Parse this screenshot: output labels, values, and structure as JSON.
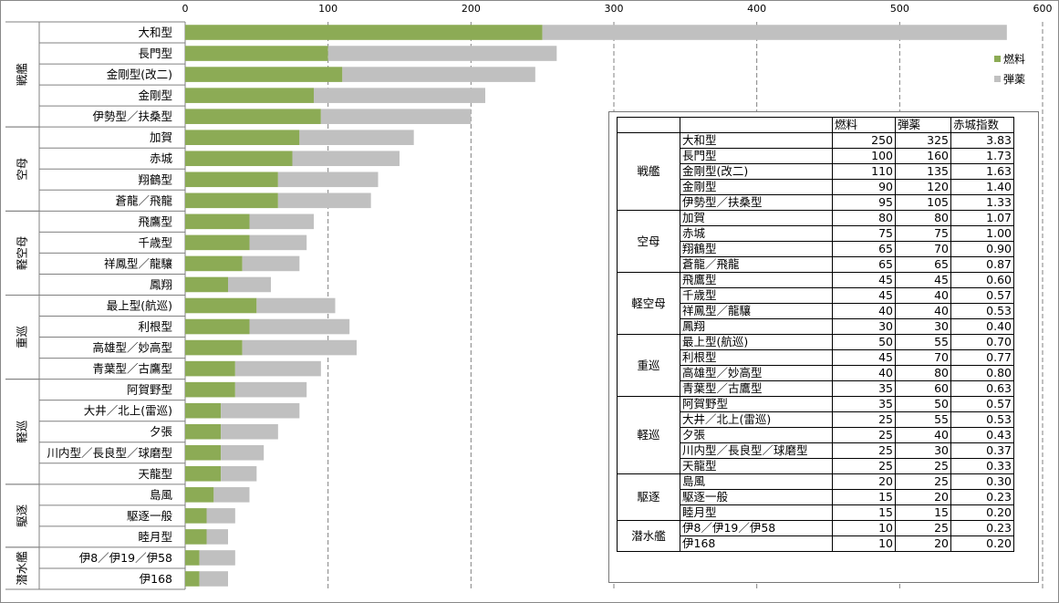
{
  "chart_data": {
    "type": "bar",
    "orientation": "horizontal",
    "stacked": true,
    "xlim": [
      0,
      600
    ],
    "x_ticks": [
      0,
      100,
      200,
      300,
      400,
      500,
      600
    ],
    "series": [
      {
        "name": "燃料",
        "color": "#8cab55",
        "values": [
          250,
          100,
          110,
          90,
          95,
          80,
          75,
          65,
          65,
          45,
          45,
          40,
          30,
          50,
          45,
          40,
          35,
          35,
          25,
          25,
          25,
          25,
          20,
          15,
          15,
          10,
          10
        ]
      },
      {
        "name": "弾薬",
        "color": "#c0c0c0",
        "values": [
          325,
          160,
          135,
          120,
          105,
          80,
          75,
          70,
          65,
          45,
          40,
          40,
          30,
          55,
          70,
          80,
          60,
          50,
          55,
          40,
          30,
          25,
          25,
          20,
          15,
          25,
          20
        ]
      }
    ],
    "categories": [
      "大和型",
      "長門型",
      "金剛型(改二)",
      "金剛型",
      "伊勢型／扶桑型",
      "加賀",
      "赤城",
      "翔鶴型",
      "蒼龍／飛龍",
      "飛鷹型",
      "千歳型",
      "祥鳳型／龍驤",
      "鳳翔",
      "最上型(航巡)",
      "利根型",
      "高雄型／妙高型",
      "青葉型／古鷹型",
      "阿賀野型",
      "大井／北上(雷巡)",
      "夕張",
      "川内型／長良型／球磨型",
      "天龍型",
      "島風",
      "駆逐一般",
      "睦月型",
      "伊8／伊19／伊58",
      "伊168"
    ],
    "groups": [
      {
        "name": "戦艦",
        "start": 0,
        "count": 5
      },
      {
        "name": "空母",
        "start": 5,
        "count": 4
      },
      {
        "name": "軽空母",
        "start": 9,
        "count": 4
      },
      {
        "name": "重巡",
        "start": 13,
        "count": 4
      },
      {
        "name": "軽巡",
        "start": 17,
        "count": 5
      },
      {
        "name": "駆逐",
        "start": 22,
        "count": 3
      },
      {
        "name": "潜水艦",
        "start": 25,
        "count": 2
      }
    ],
    "legend_position": "right",
    "grid": true
  },
  "table": {
    "headers": [
      "燃料",
      "弾薬",
      "赤城指数"
    ],
    "groups": [
      {
        "name": "戦艦",
        "rows": [
          {
            "name": "大和型",
            "fuel": "250",
            "ammo": "325",
            "index": "3.83"
          },
          {
            "name": "長門型",
            "fuel": "100",
            "ammo": "160",
            "index": "1.73"
          },
          {
            "name": "金剛型(改二)",
            "fuel": "110",
            "ammo": "135",
            "index": "1.63"
          },
          {
            "name": "金剛型",
            "fuel": "90",
            "ammo": "120",
            "index": "1.40"
          },
          {
            "name": "伊勢型／扶桑型",
            "fuel": "95",
            "ammo": "105",
            "index": "1.33"
          }
        ]
      },
      {
        "name": "空母",
        "rows": [
          {
            "name": "加賀",
            "fuel": "80",
            "ammo": "80",
            "index": "1.07"
          },
          {
            "name": "赤城",
            "fuel": "75",
            "ammo": "75",
            "index": "1.00"
          },
          {
            "name": "翔鶴型",
            "fuel": "65",
            "ammo": "70",
            "index": "0.90"
          },
          {
            "name": "蒼龍／飛龍",
            "fuel": "65",
            "ammo": "65",
            "index": "0.87"
          }
        ]
      },
      {
        "name": "軽空母",
        "rows": [
          {
            "name": "飛鷹型",
            "fuel": "45",
            "ammo": "45",
            "index": "0.60"
          },
          {
            "name": "千歳型",
            "fuel": "45",
            "ammo": "40",
            "index": "0.57"
          },
          {
            "name": "祥鳳型／龍驤",
            "fuel": "40",
            "ammo": "40",
            "index": "0.53"
          },
          {
            "name": "鳳翔",
            "fuel": "30",
            "ammo": "30",
            "index": "0.40"
          }
        ]
      },
      {
        "name": "重巡",
        "rows": [
          {
            "name": "最上型(航巡)",
            "fuel": "50",
            "ammo": "55",
            "index": "0.70"
          },
          {
            "name": "利根型",
            "fuel": "45",
            "ammo": "70",
            "index": "0.77"
          },
          {
            "name": "高雄型／妙高型",
            "fuel": "40",
            "ammo": "80",
            "index": "0.80"
          },
          {
            "name": "青葉型／古鷹型",
            "fuel": "35",
            "ammo": "60",
            "index": "0.63"
          }
        ]
      },
      {
        "name": "軽巡",
        "rows": [
          {
            "name": "阿賀野型",
            "fuel": "35",
            "ammo": "50",
            "index": "0.57"
          },
          {
            "name": "大井／北上(雷巡)",
            "fuel": "25",
            "ammo": "55",
            "index": "0.53"
          },
          {
            "name": "夕張",
            "fuel": "25",
            "ammo": "40",
            "index": "0.43"
          },
          {
            "name": "川内型／長良型／球磨型",
            "fuel": "25",
            "ammo": "30",
            "index": "0.37"
          },
          {
            "name": "天龍型",
            "fuel": "25",
            "ammo": "25",
            "index": "0.33"
          }
        ]
      },
      {
        "name": "駆逐",
        "rows": [
          {
            "name": "島風",
            "fuel": "20",
            "ammo": "25",
            "index": "0.30"
          },
          {
            "name": "駆逐一般",
            "fuel": "15",
            "ammo": "20",
            "index": "0.23"
          },
          {
            "name": "睦月型",
            "fuel": "15",
            "ammo": "15",
            "index": "0.20"
          }
        ]
      },
      {
        "name": "潜水艦",
        "rows": [
          {
            "name": "伊8／伊19／伊58",
            "fuel": "10",
            "ammo": "25",
            "index": "0.23"
          },
          {
            "name": "伊168",
            "fuel": "10",
            "ammo": "20",
            "index": "0.20"
          }
        ]
      }
    ]
  }
}
